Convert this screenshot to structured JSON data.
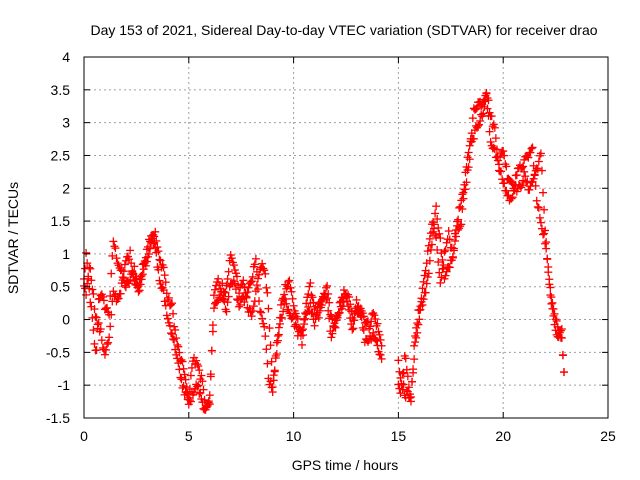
{
  "chart_data": {
    "type": "scatter",
    "title": "Day 153 of 2021, Sidereal Day-to-day VTEC variation (SDTVAR) for receiver drao",
    "xlabel": "GPS time / hours",
    "ylabel": "SDTVAR / TECUs",
    "xlim": [
      0,
      25
    ],
    "ylim": [
      -1.5,
      4
    ],
    "xticks": [
      0,
      5,
      10,
      15,
      20,
      25
    ],
    "xtick_labels": [
      "0",
      "5",
      "10",
      "15",
      "20",
      "25"
    ],
    "yticks": [
      -1.5,
      -1,
      -0.5,
      0,
      0.5,
      1,
      1.5,
      2,
      2.5,
      3,
      3.5,
      4
    ],
    "ytick_labels": [
      "-1.5",
      "-1",
      "-0.5",
      "0",
      "0.5",
      "1",
      "1.5",
      "2",
      "2.5",
      "3",
      "3.5",
      "4"
    ],
    "grid": true,
    "marker": "+",
    "color": "#ff0000",
    "series": [
      {
        "name": "SDTVAR",
        "x": [
          0.0,
          0.1,
          0.2,
          0.3,
          0.4,
          0.5,
          0.6,
          0.7,
          0.8,
          0.9,
          1.0,
          1.2,
          1.4,
          1.6,
          1.8,
          2.0,
          2.2,
          2.4,
          2.6,
          2.8,
          3.0,
          3.2,
          3.4,
          3.6,
          3.8,
          4.0,
          4.2,
          4.4,
          4.6,
          4.8,
          5.0,
          5.2,
          5.4,
          5.6,
          5.8,
          6.0,
          6.2,
          6.4,
          6.6,
          6.8,
          7.0,
          7.2,
          7.4,
          7.6,
          7.8,
          8.0,
          8.2,
          8.4,
          8.6,
          8.8,
          9.0,
          9.2,
          9.4,
          9.6,
          9.8,
          10.0,
          10.2,
          10.4,
          10.6,
          10.8,
          11.0,
          11.2,
          11.4,
          11.6,
          11.8,
          12.0,
          12.2,
          12.4,
          12.6,
          12.8,
          13.0,
          13.2,
          13.4,
          13.6,
          13.8,
          14.0,
          14.2,
          15.0,
          15.1,
          15.2,
          15.3,
          15.4,
          15.5,
          15.6,
          15.8,
          16.0,
          16.2,
          16.4,
          16.6,
          16.8,
          17.0,
          17.2,
          17.4,
          17.6,
          17.8,
          18.0,
          18.2,
          18.4,
          18.6,
          18.8,
          19.0,
          19.2,
          19.4,
          19.6,
          19.8,
          20.0,
          20.2,
          20.4,
          20.6,
          20.8,
          21.0,
          21.2,
          21.4,
          21.6,
          21.8,
          22.0,
          22.2,
          22.4,
          22.6,
          22.8,
          22.9
        ],
        "y": [
          0.6,
          1.0,
          0.6,
          0.3,
          0.0,
          -0.4,
          -0.5,
          0.3,
          0.4,
          0.3,
          0.2,
          0.1,
          1.2,
          0.9,
          0.7,
          0.5,
          0.6,
          0.8,
          0.4,
          0.7,
          1.1,
          1.3,
          1.3,
          0.9,
          0.8,
          0.3,
          0.2,
          -0.3,
          -0.6,
          -0.8,
          -1.3,
          -1.1,
          -1.0,
          -1.2,
          -1.4,
          -1.3,
          0.4,
          0.6,
          0.3,
          0.5,
          1.0,
          0.8,
          0.4,
          0.6,
          0.2,
          0.1,
          0.4,
          0.8,
          0.8,
          0.2,
          -1.0,
          -0.5,
          0.2,
          0.5,
          0.6,
          0.2,
          0.0,
          -0.4,
          0.3,
          0.5,
          0.2,
          0.0,
          0.3,
          0.5,
          0.0,
          -0.1,
          0.1,
          0.3,
          0.4,
          0.0,
          0.1,
          0.2,
          0.0,
          -0.1,
          0.1,
          -0.1,
          -0.4,
          -0.6,
          -0.9,
          -1.1,
          -0.5,
          -0.8,
          -1.0,
          -1.2,
          -0.4,
          0.0,
          0.6,
          1.0,
          1.5,
          1.2,
          0.5,
          1.0,
          1.3,
          1.0,
          1.5,
          1.8,
          2.0,
          2.5,
          3.2,
          3.3,
          3.3,
          3.5,
          3.1,
          2.9,
          2.4,
          2.6,
          2.2,
          2.1,
          2.0,
          2.0,
          2.2,
          2.0,
          2.1,
          2.3,
          2.5,
          1.4,
          0.5,
          0.0,
          -0.3,
          -0.2,
          -0.8
        ],
        "y2": [
          0.5,
          0.4,
          0.7,
          0.8,
          0.5,
          0.2,
          0.0,
          -0.1,
          -0.2,
          -0.4,
          -0.5,
          -0.3,
          0.4,
          0.3,
          0.5,
          0.9,
          1.0,
          0.6,
          0.5,
          0.8,
          0.9,
          1.2,
          1.1,
          0.6,
          0.4,
          0.0,
          -0.2,
          -0.5,
          -0.9,
          -1.1,
          -1.2,
          -0.6,
          -0.7,
          -0.9,
          -1.3,
          -1.2,
          0.2,
          0.3,
          0.5,
          0.1,
          0.6,
          0.5,
          0.2,
          0.3,
          0.4,
          0.6,
          0.9,
          0.1,
          -0.1,
          -0.9,
          -1.1,
          -0.4,
          0.0,
          0.3,
          0.1,
          0.0,
          -0.2,
          -0.2,
          0.1,
          0.2,
          -0.1,
          0.2,
          0.4,
          0.3,
          -0.3,
          0.0,
          0.2,
          0.4,
          0.2,
          -0.2,
          0.3,
          0.1,
          -0.3,
          -0.3,
          -0.2,
          -0.4,
          -0.6,
          -1.0,
          -1.1,
          -0.8,
          -1.2,
          -1.1,
          -1.2,
          -1.2,
          -0.2,
          0.2,
          0.3,
          0.6,
          1.2,
          1.7,
          1.2,
          0.6,
          0.8,
          1.0,
          1.4,
          1.5,
          2.2,
          2.7,
          2.8,
          3.0,
          3.1,
          3.4,
          2.7,
          2.6,
          2.3,
          2.1,
          1.9,
          1.8,
          2.2,
          2.3,
          2.4,
          2.5,
          2.6,
          1.8,
          1.5,
          1.2,
          0.6,
          0.2,
          -0.1,
          -0.3,
          -0.8
        ]
      }
    ]
  }
}
